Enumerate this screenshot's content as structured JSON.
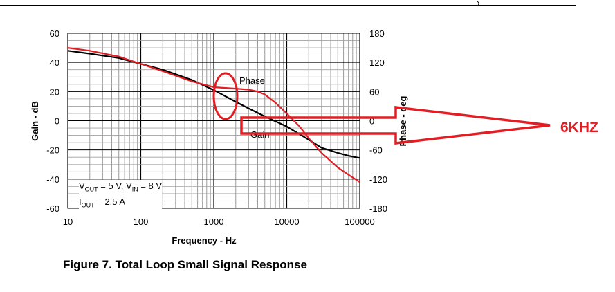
{
  "caption": "Figure 7. Total Loop Small Signal Response",
  "annotation": {
    "label": "6KHZ",
    "color": "#e01e24"
  },
  "conditions": {
    "line1_vout": "V",
    "line1_vout_sub": "OUT",
    "line1_vout_val": " = 5 V, ",
    "line1_vin": "V",
    "line1_vin_sub": "IN",
    "line1_vin_val": " = 8 V",
    "line2_iout": "I",
    "line2_iout_sub": "OUT",
    "line2_iout_val": " = 2.5 A"
  },
  "chart_data": {
    "type": "line",
    "title": "",
    "xlabel": "Frequency - Hz",
    "ylabel": "Gain - dB",
    "y2label": "Phase - deg",
    "xscale": "log",
    "xlim": [
      10,
      100000
    ],
    "ylim": [
      -60,
      60
    ],
    "y2lim": [
      -180,
      180
    ],
    "x_ticks": [
      "10",
      "100",
      "1000",
      "10000",
      "100000"
    ],
    "y_ticks": [
      "60",
      "40",
      "20",
      "0",
      "-20",
      "-40",
      "-60"
    ],
    "y2_ticks": [
      "180",
      "120",
      "60",
      "0",
      "-60",
      "-120",
      "-180"
    ],
    "grid": true,
    "series": [
      {
        "name": "Gain",
        "axis": "left",
        "color": "#000000",
        "x": [
          10,
          20,
          50,
          100,
          200,
          500,
          1000,
          2000,
          3000,
          5000,
          10000,
          20000,
          30000,
          50000,
          70000,
          100000
        ],
        "y": [
          48,
          46,
          43,
          39,
          35,
          28,
          21,
          13,
          8.5,
          3,
          -4,
          -13,
          -18.5,
          -22,
          -24,
          -25.5
        ]
      },
      {
        "name": "Phase",
        "axis": "right",
        "color": "#e01e24",
        "x": [
          10,
          20,
          50,
          100,
          200,
          500,
          1000,
          2000,
          3000,
          4000,
          5000,
          7000,
          10000,
          15000,
          20000,
          30000,
          50000,
          70000,
          100000
        ],
        "y": [
          150,
          144,
          132,
          117,
          102,
          81,
          69,
          66,
          64,
          60,
          54,
          37,
          15,
          -12,
          -36,
          -66,
          -96,
          -111,
          -126
        ]
      }
    ]
  }
}
